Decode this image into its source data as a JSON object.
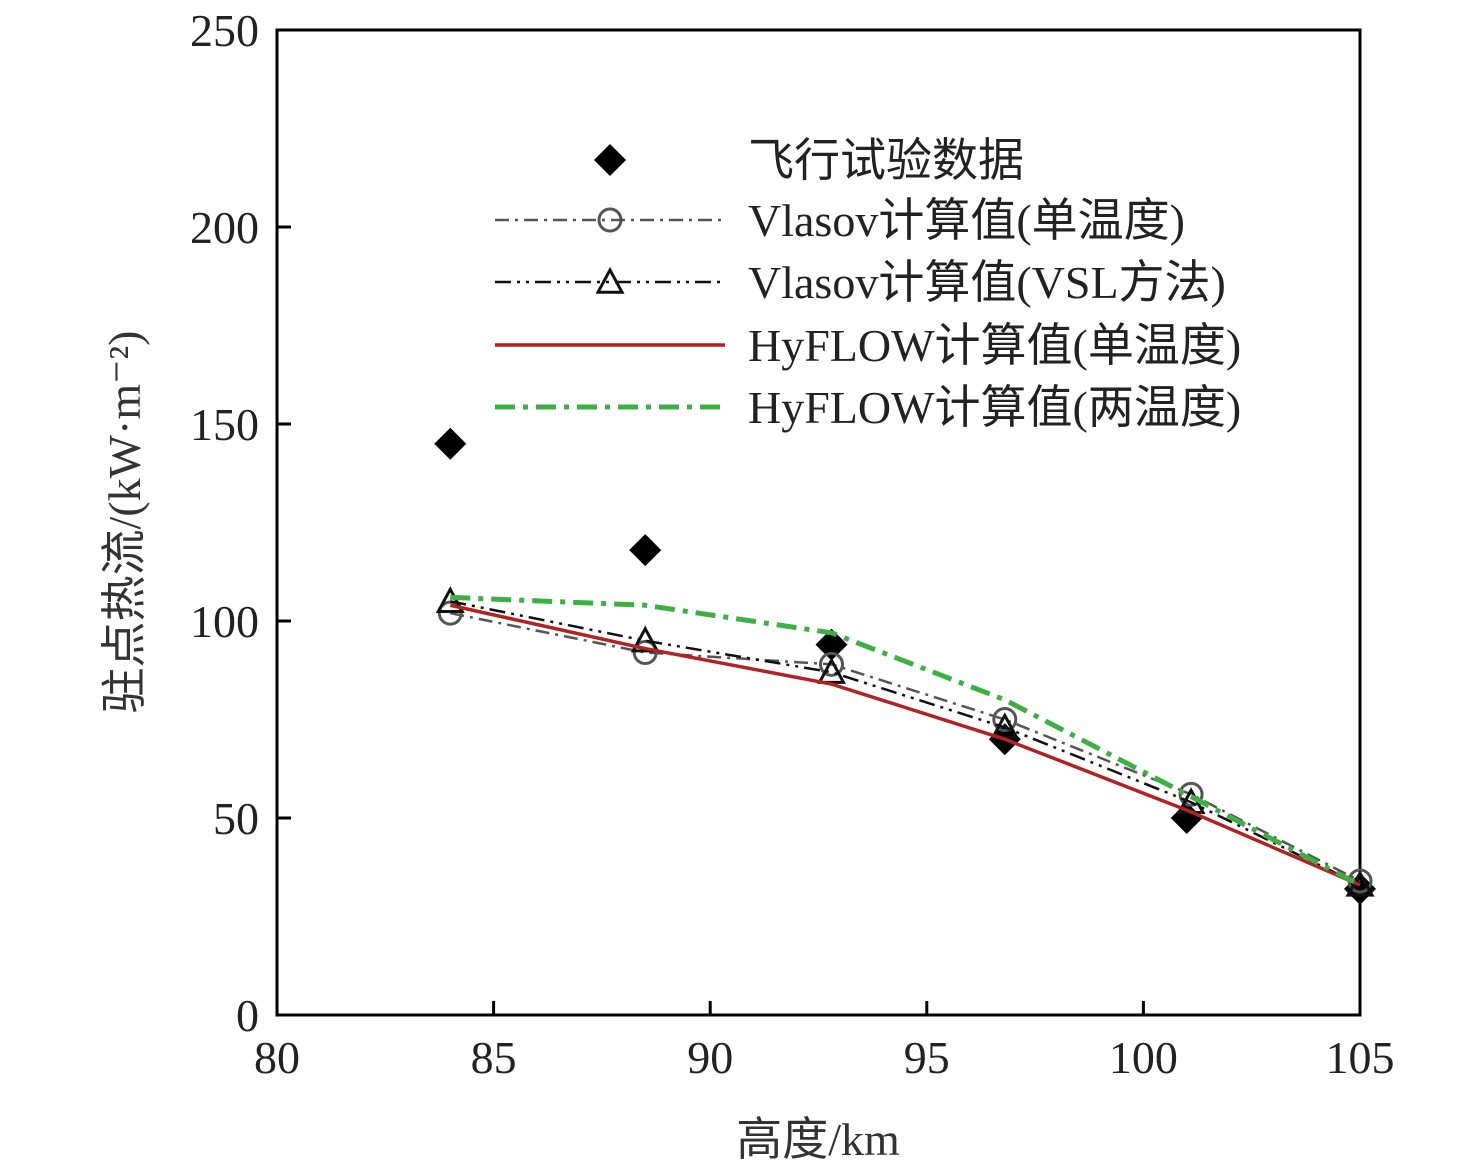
{
  "chart_data": {
    "type": "line",
    "xlabel": "高度/km",
    "ylabel": "驻点热流/(kW·m⁻²)",
    "xlim": [
      80,
      105
    ],
    "ylim": [
      0,
      250
    ],
    "xticks": [
      "80",
      "85",
      "90",
      "95",
      "100",
      "105"
    ],
    "yticks": [
      "0",
      "50",
      "100",
      "150",
      "200",
      "250"
    ],
    "legend_position": "upper-center",
    "series": [
      {
        "name": "飞行试验数据",
        "style": "markers",
        "marker": "filled-diamond",
        "color": "#000000",
        "x": [
          84.0,
          88.5,
          92.8,
          96.8,
          101.0,
          105.0
        ],
        "y": [
          145,
          118,
          94,
          70,
          50,
          32
        ]
      },
      {
        "name": "Vlasov计算值(单温度)",
        "style": "dash-dot",
        "marker": "open-circle",
        "color": "#555555",
        "x": [
          84.0,
          88.5,
          92.8,
          96.8,
          101.1,
          105.0
        ],
        "y": [
          102,
          92,
          89,
          75,
          56,
          34
        ]
      },
      {
        "name": "Vlasov计算值(VSL方法)",
        "style": "dash-dot-dot",
        "marker": "open-triangle",
        "color": "#111111",
        "x": [
          84.0,
          88.5,
          92.8,
          96.8,
          101.1,
          105.0
        ],
        "y": [
          105,
          95,
          87,
          73,
          54,
          33
        ]
      },
      {
        "name": "HyFLOW计算值(单温度)",
        "style": "solid",
        "marker": "none",
        "color": "#b22222",
        "x": [
          84.0,
          88.5,
          92.8,
          96.8,
          101.0,
          105.0
        ],
        "y": [
          104,
          93,
          84,
          70,
          52,
          33
        ]
      },
      {
        "name": "HyFLOW计算值(两温度)",
        "style": "dash-dot-bold",
        "marker": "none",
        "color": "#3cb043",
        "x": [
          84.0,
          88.5,
          92.8,
          96.8,
          101.0,
          105.0
        ],
        "y": [
          106,
          104,
          97,
          80,
          56,
          33
        ]
      }
    ]
  }
}
